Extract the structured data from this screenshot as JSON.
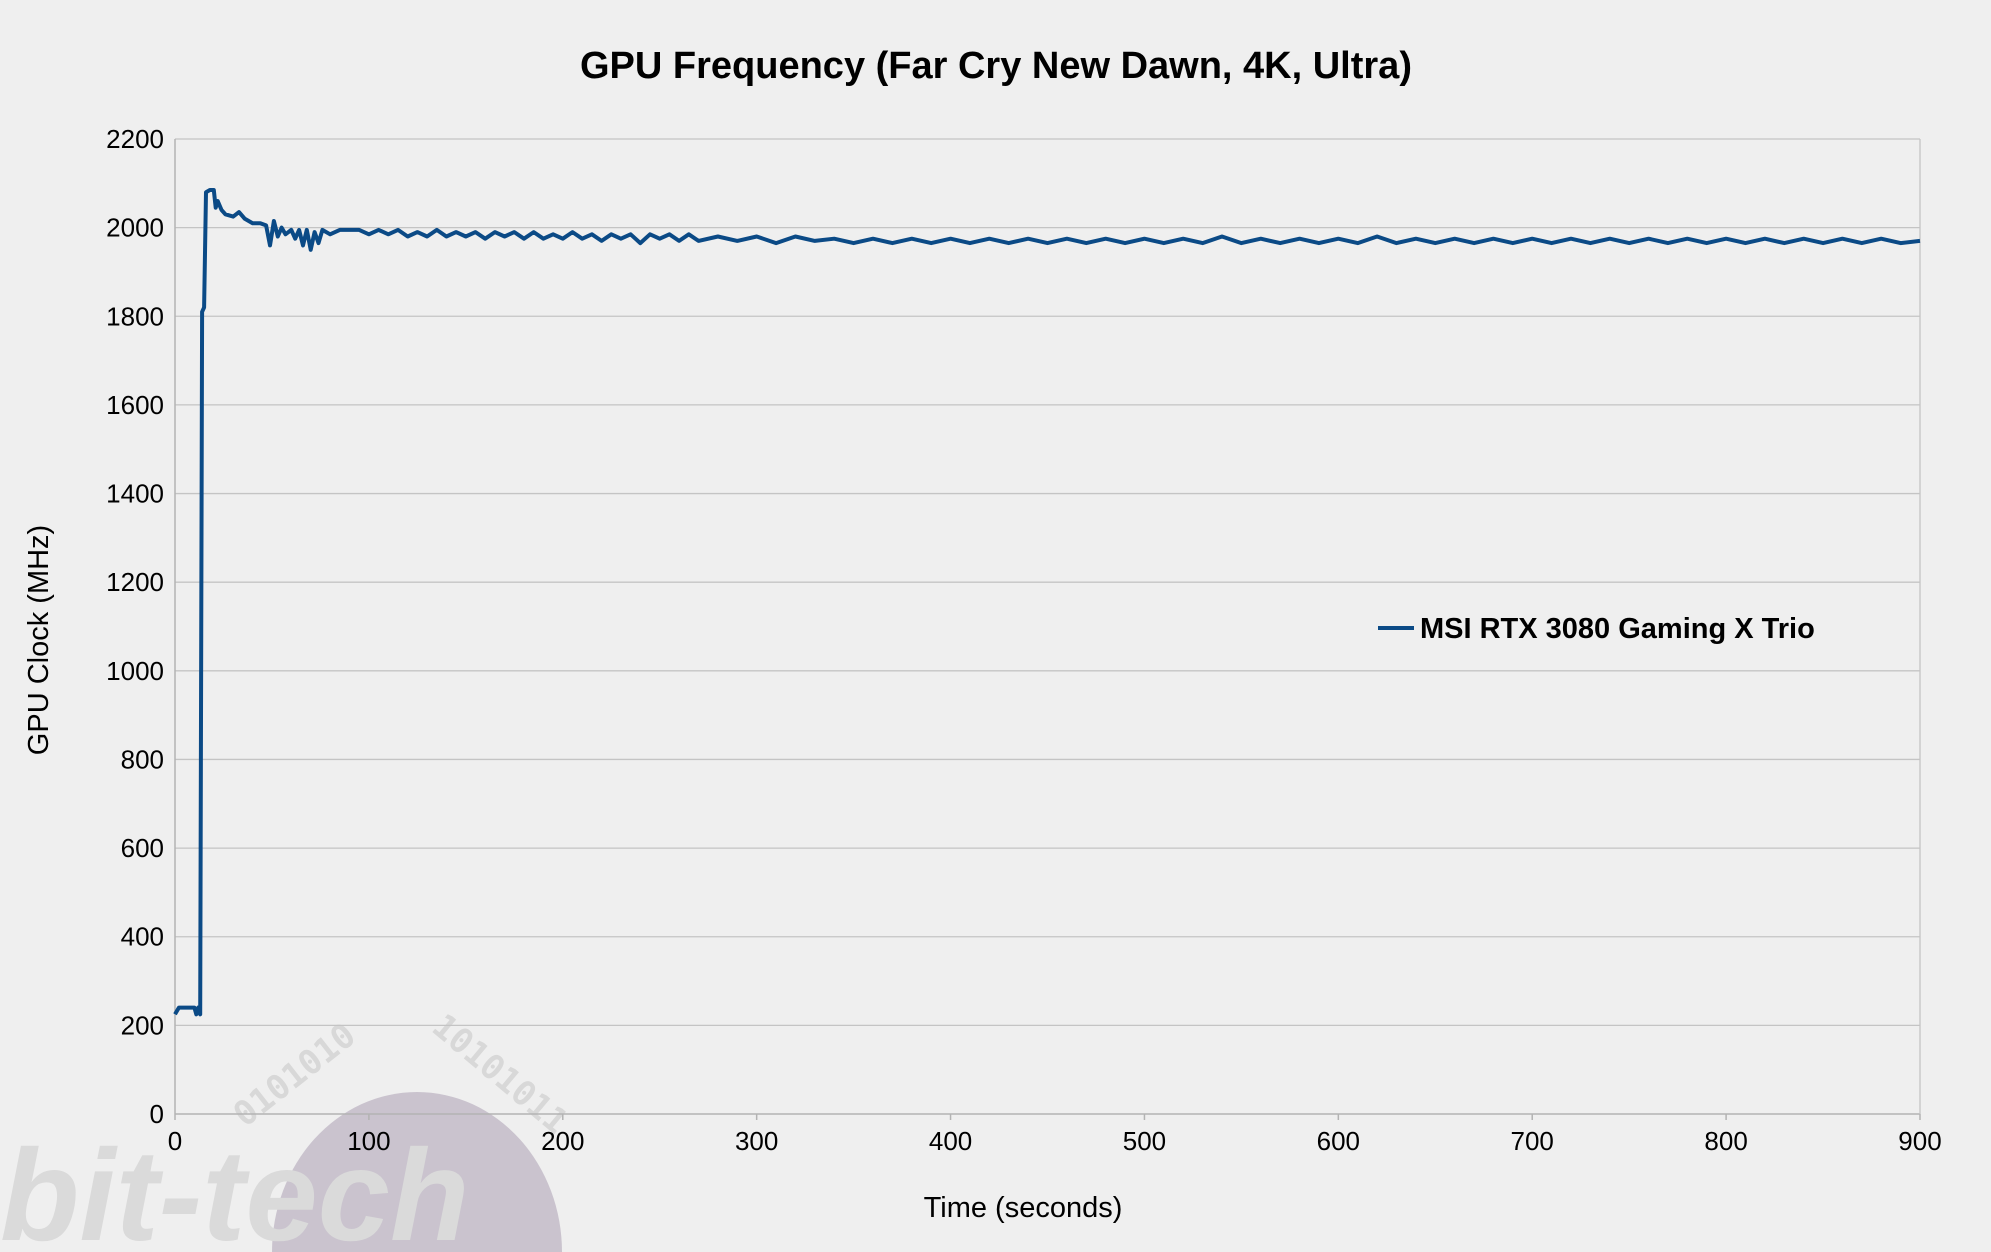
{
  "chart_data": {
    "type": "line",
    "title": "GPU Frequency (Far Cry New Dawn, 4K, Ultra)",
    "xlabel": "Time (seconds)",
    "ylabel": "GPU Clock (MHz)",
    "xlim": [
      0,
      900
    ],
    "ylim": [
      0,
      2200
    ],
    "xticks": [
      0,
      100,
      200,
      300,
      400,
      500,
      600,
      700,
      800,
      900
    ],
    "yticks": [
      0,
      200,
      400,
      600,
      800,
      1000,
      1200,
      1400,
      1600,
      1800,
      2000,
      2200
    ],
    "grid": true,
    "legend_position": "right",
    "series": [
      {
        "name": "MSI RTX 3080 Gaming X Trio",
        "color": "#0b4a86",
        "points": [
          [
            0,
            225
          ],
          [
            2,
            240
          ],
          [
            6,
            240
          ],
          [
            10,
            240
          ],
          [
            11,
            225
          ],
          [
            12,
            240
          ],
          [
            13,
            225
          ],
          [
            14,
            1810
          ],
          [
            15,
            1820
          ],
          [
            16,
            2080
          ],
          [
            18,
            2085
          ],
          [
            20,
            2085
          ],
          [
            21,
            2045
          ],
          [
            22,
            2060
          ],
          [
            24,
            2040
          ],
          [
            26,
            2030
          ],
          [
            30,
            2025
          ],
          [
            33,
            2035
          ],
          [
            36,
            2020
          ],
          [
            40,
            2010
          ],
          [
            44,
            2010
          ],
          [
            47,
            2005
          ],
          [
            49,
            1960
          ],
          [
            51,
            2015
          ],
          [
            53,
            1980
          ],
          [
            55,
            2000
          ],
          [
            57,
            1985
          ],
          [
            60,
            1995
          ],
          [
            62,
            1975
          ],
          [
            64,
            1995
          ],
          [
            66,
            1960
          ],
          [
            68,
            1995
          ],
          [
            70,
            1950
          ],
          [
            72,
            1990
          ],
          [
            74,
            1965
          ],
          [
            76,
            1995
          ],
          [
            80,
            1985
          ],
          [
            85,
            1995
          ],
          [
            95,
            1995
          ],
          [
            100,
            1985
          ],
          [
            105,
            1995
          ],
          [
            110,
            1985
          ],
          [
            115,
            1995
          ],
          [
            120,
            1980
          ],
          [
            125,
            1990
          ],
          [
            130,
            1980
          ],
          [
            135,
            1995
          ],
          [
            140,
            1980
          ],
          [
            145,
            1990
          ],
          [
            150,
            1980
          ],
          [
            155,
            1990
          ],
          [
            160,
            1975
          ],
          [
            165,
            1990
          ],
          [
            170,
            1980
          ],
          [
            175,
            1990
          ],
          [
            180,
            1975
          ],
          [
            185,
            1990
          ],
          [
            190,
            1975
          ],
          [
            195,
            1985
          ],
          [
            200,
            1975
          ],
          [
            205,
            1990
          ],
          [
            210,
            1975
          ],
          [
            215,
            1985
          ],
          [
            220,
            1970
          ],
          [
            225,
            1985
          ],
          [
            230,
            1975
          ],
          [
            235,
            1985
          ],
          [
            240,
            1965
          ],
          [
            245,
            1985
          ],
          [
            250,
            1975
          ],
          [
            255,
            1985
          ],
          [
            260,
            1970
          ],
          [
            265,
            1985
          ],
          [
            270,
            1970
          ],
          [
            280,
            1980
          ],
          [
            290,
            1970
          ],
          [
            300,
            1980
          ],
          [
            310,
            1965
          ],
          [
            320,
            1980
          ],
          [
            330,
            1970
          ],
          [
            340,
            1975
          ],
          [
            350,
            1965
          ],
          [
            360,
            1975
          ],
          [
            370,
            1965
          ],
          [
            380,
            1975
          ],
          [
            390,
            1965
          ],
          [
            400,
            1975
          ],
          [
            410,
            1965
          ],
          [
            420,
            1975
          ],
          [
            430,
            1965
          ],
          [
            440,
            1975
          ],
          [
            450,
            1965
          ],
          [
            460,
            1975
          ],
          [
            470,
            1965
          ],
          [
            480,
            1975
          ],
          [
            490,
            1965
          ],
          [
            500,
            1975
          ],
          [
            510,
            1965
          ],
          [
            520,
            1975
          ],
          [
            530,
            1965
          ],
          [
            540,
            1980
          ],
          [
            550,
            1965
          ],
          [
            560,
            1975
          ],
          [
            570,
            1965
          ],
          [
            580,
            1975
          ],
          [
            590,
            1965
          ],
          [
            600,
            1975
          ],
          [
            610,
            1965
          ],
          [
            620,
            1980
          ],
          [
            630,
            1965
          ],
          [
            640,
            1975
          ],
          [
            650,
            1965
          ],
          [
            660,
            1975
          ],
          [
            670,
            1965
          ],
          [
            680,
            1975
          ],
          [
            690,
            1965
          ],
          [
            700,
            1975
          ],
          [
            710,
            1965
          ],
          [
            720,
            1975
          ],
          [
            730,
            1965
          ],
          [
            740,
            1975
          ],
          [
            750,
            1965
          ],
          [
            760,
            1975
          ],
          [
            770,
            1965
          ],
          [
            780,
            1975
          ],
          [
            790,
            1965
          ],
          [
            800,
            1975
          ],
          [
            810,
            1965
          ],
          [
            820,
            1975
          ],
          [
            830,
            1965
          ],
          [
            840,
            1975
          ],
          [
            850,
            1965
          ],
          [
            860,
            1975
          ],
          [
            870,
            1965
          ],
          [
            880,
            1975
          ],
          [
            890,
            1965
          ],
          [
            900,
            1970
          ]
        ]
      }
    ]
  }
}
